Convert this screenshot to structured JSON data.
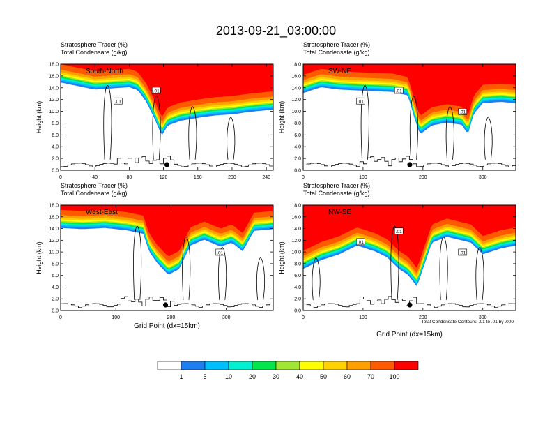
{
  "title": "2013-09-21_03:00:00",
  "colors": {
    "levels": [
      "#ffffff",
      "#1e7ff0",
      "#00bfff",
      "#00f0d0",
      "#00e64c",
      "#a0e632",
      "#ffff00",
      "#ffd200",
      "#ffa000",
      "#ff5a00",
      "#ff0000"
    ],
    "topo": "#000000",
    "contour": "#000000"
  },
  "colorbar": {
    "labels": [
      "1",
      "5",
      "10",
      "20",
      "30",
      "40",
      "50",
      "60",
      "70",
      "100"
    ]
  },
  "contour_note": "Total Condensate Contours: .01 to .01 by .000",
  "chart_data": [
    {
      "type": "heatmap",
      "cross_section": "South-North",
      "header_line1": "Stratosphere Tracer   (%)",
      "header_line2": "Total Condensate   (g/kg)",
      "ylabel": "Height (km)",
      "xlabel": "",
      "xlim": [
        0,
        248
      ],
      "ylim": [
        0,
        18
      ],
      "xticks": [
        "0",
        "40",
        "80",
        "120",
        "160",
        "200",
        "240"
      ],
      "xtick_values": [
        0,
        40,
        80,
        120,
        160,
        200,
        240
      ],
      "yticks": [
        "0.0",
        "2.0",
        "4.0",
        "6.0",
        "8.0",
        "10.0",
        "12.0",
        "14.0",
        "16.0",
        "18.0"
      ],
      "contour_labels": [
        ".01",
        ".01"
      ],
      "tracer_base_km": [
        [
          0,
          15.8
        ],
        [
          20,
          15.2
        ],
        [
          40,
          14.6
        ],
        [
          60,
          14.8
        ],
        [
          80,
          15.0
        ],
        [
          90,
          14.5
        ],
        [
          100,
          12.5
        ],
        [
          110,
          9.5
        ],
        [
          118,
          6.8
        ],
        [
          125,
          8.5
        ],
        [
          140,
          9.3
        ],
        [
          160,
          9.8
        ],
        [
          180,
          10.2
        ],
        [
          200,
          10.4
        ],
        [
          220,
          10.8
        ],
        [
          248,
          11.2
        ]
      ],
      "marker_x": 124
    },
    {
      "type": "heatmap",
      "cross_section": "SW-NE",
      "header_line1": "Stratosphere Tracer   (%)",
      "header_line2": "Total Condensate   (g/kg)",
      "ylabel": "Height (km)",
      "xlabel": "",
      "xlim": [
        0,
        355
      ],
      "ylim": [
        0,
        18
      ],
      "xticks": [
        "0",
        "100",
        "200",
        "300"
      ],
      "xtick_values": [
        0,
        100,
        200,
        300
      ],
      "yticks": [
        "0.0",
        "2.0",
        "4.0",
        "6.0",
        "8.0",
        "10.0",
        "12.0",
        "14.0",
        "16.0",
        "18.0"
      ],
      "contour_labels": [
        ".01",
        ".01",
        ".01"
      ],
      "tracer_base_km": [
        [
          0,
          14.0
        ],
        [
          30,
          15.0
        ],
        [
          60,
          14.6
        ],
        [
          100,
          14.4
        ],
        [
          150,
          14.2
        ],
        [
          175,
          13.6
        ],
        [
          185,
          10.0
        ],
        [
          195,
          7.0
        ],
        [
          215,
          8.5
        ],
        [
          240,
          9.0
        ],
        [
          265,
          8.6
        ],
        [
          275,
          7.0
        ],
        [
          285,
          10.5
        ],
        [
          300,
          12.3
        ],
        [
          330,
          12.5
        ],
        [
          355,
          12.3
        ]
      ],
      "marker_x": 178
    },
    {
      "type": "heatmap",
      "cross_section": "West-East",
      "header_line1": "Stratosphere Tracer   (%)",
      "header_line2": "Total Condensate   (g/kg)",
      "ylabel": "Height (km)",
      "xlabel": "Grid Point (dx=15km)",
      "xlim": [
        0,
        385
      ],
      "ylim": [
        0,
        18
      ],
      "xticks": [
        "0",
        "100",
        "200",
        "300"
      ],
      "xtick_values": [
        0,
        100,
        200,
        300
      ],
      "yticks": [
        "0.0",
        "2.0",
        "4.0",
        "6.0",
        "8.0",
        "10.0",
        "12.0",
        "14.0",
        "16.0",
        "18.0"
      ],
      "contour_labels": [
        ".01"
      ],
      "tracer_base_km": [
        [
          0,
          15.0
        ],
        [
          40,
          14.8
        ],
        [
          80,
          15.0
        ],
        [
          120,
          14.6
        ],
        [
          150,
          14.0
        ],
        [
          160,
          11.0
        ],
        [
          175,
          9.0
        ],
        [
          195,
          7.0
        ],
        [
          215,
          8.0
        ],
        [
          235,
          12.0
        ],
        [
          260,
          13.0
        ],
        [
          290,
          11.8
        ],
        [
          310,
          12.5
        ],
        [
          330,
          11.0
        ],
        [
          350,
          14.5
        ],
        [
          385,
          14.8
        ]
      ],
      "marker_x": 190
    },
    {
      "type": "heatmap",
      "cross_section": "NW-SE",
      "header_line1": "Stratosphere Tracer   (%)",
      "header_line2": "Total Condensate   (g/kg)",
      "ylabel": "Height (km)",
      "xlabel": "Grid Point (dx=15km)",
      "xlim": [
        0,
        355
      ],
      "ylim": [
        0,
        18
      ],
      "xticks": [
        "0",
        "100",
        "200",
        "300"
      ],
      "xtick_values": [
        0,
        100,
        200,
        300
      ],
      "yticks": [
        "0.0",
        "2.0",
        "4.0",
        "6.0",
        "8.0",
        "10.0",
        "12.0",
        "14.0",
        "16.0",
        "18.0"
      ],
      "contour_labels": [
        ".01",
        ".01",
        ".01"
      ],
      "tracer_base_km": [
        [
          0,
          8.0
        ],
        [
          30,
          9.5
        ],
        [
          60,
          10.5
        ],
        [
          90,
          12.0
        ],
        [
          120,
          11.0
        ],
        [
          140,
          10.0
        ],
        [
          160,
          8.0
        ],
        [
          175,
          7.0
        ],
        [
          190,
          5.0
        ],
        [
          200,
          8.0
        ],
        [
          215,
          12.5
        ],
        [
          240,
          13.5
        ],
        [
          260,
          13.0
        ],
        [
          280,
          12.5
        ],
        [
          300,
          10.5
        ],
        [
          330,
          11.5
        ],
        [
          355,
          12.0
        ]
      ],
      "marker_x": 178
    }
  ]
}
